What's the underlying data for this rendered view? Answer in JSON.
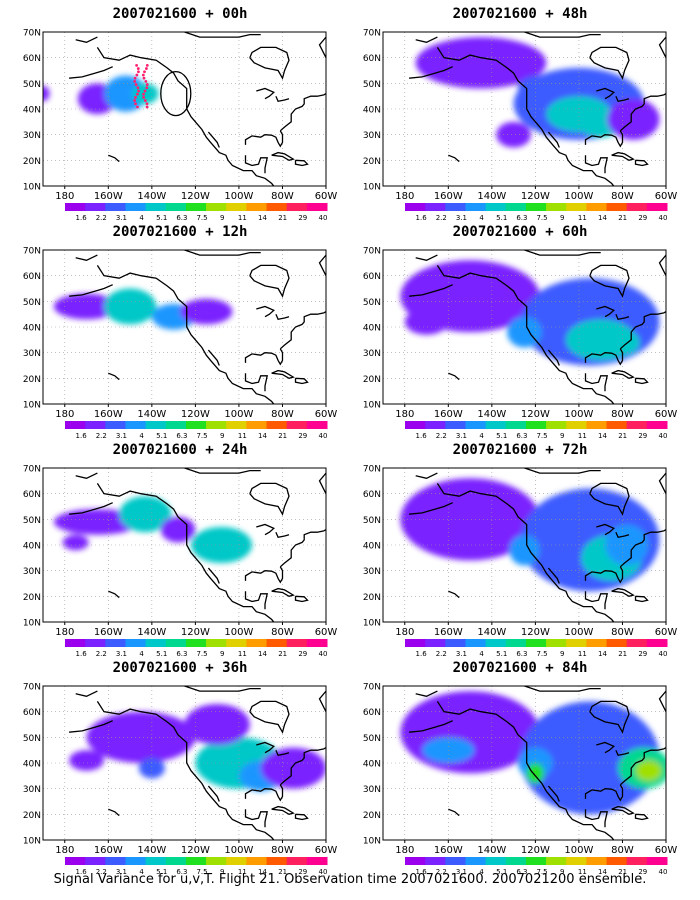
{
  "footer": "Signal Variance for u,v,T. Flight 21. Observation time 2007021600. 2007021200 ensemble.",
  "colorbar": {
    "labels": [
      "1.6",
      "2.2",
      "3.1",
      "4",
      "5.1",
      "6.3",
      "7.5",
      "9",
      "11",
      "14",
      "21",
      "29",
      "40"
    ],
    "colors": [
      "#9a00ee",
      "#7a22ff",
      "#3c5cff",
      "#1a96ff",
      "#00c8c8",
      "#00d890",
      "#20e020",
      "#a0e000",
      "#e0d000",
      "#ff9c00",
      "#ff5a00",
      "#ff2060",
      "#ff0090"
    ]
  },
  "map": {
    "xticks": [
      "180",
      "160W",
      "140W",
      "120W",
      "100W",
      "80W",
      "60W"
    ],
    "yticks": [
      "70N",
      "60N",
      "50N",
      "40N",
      "30N",
      "20N",
      "10N"
    ]
  },
  "chart_data": [
    {
      "type": "heatmap",
      "title": "2007021600 + 00h",
      "lead": "00h",
      "blobs": [
        [
          -165,
          44,
          9,
          6,
          1
        ],
        [
          -152,
          46,
          10,
          7,
          3
        ],
        [
          -143,
          46,
          6,
          4,
          4
        ],
        [
          -190,
          46,
          3,
          3,
          1
        ]
      ],
      "markers": {
        "circle": [
          -129,
          46
        ],
        "dots": true
      }
    },
    {
      "type": "heatmap",
      "title": "2007021600 + 12h",
      "lead": "12h",
      "blobs": [
        [
          -170,
          48,
          15,
          5,
          1
        ],
        [
          -150,
          48,
          12,
          7,
          4
        ],
        [
          -130,
          44,
          10,
          5,
          3
        ],
        [
          -115,
          46,
          12,
          5,
          1
        ]
      ]
    },
    {
      "type": "heatmap",
      "title": "2007021600 + 24h",
      "lead": "24h",
      "blobs": [
        [
          -165,
          49,
          20,
          5,
          1
        ],
        [
          -143,
          52,
          12,
          7,
          4
        ],
        [
          -108,
          40,
          14,
          7,
          4
        ],
        [
          -175,
          41,
          6,
          3,
          1
        ],
        [
          -128,
          46,
          8,
          5,
          1
        ]
      ]
    },
    {
      "type": "heatmap",
      "title": "2007021600 + 36h",
      "lead": "36h",
      "blobs": [
        [
          -145,
          50,
          25,
          10,
          1
        ],
        [
          -100,
          40,
          20,
          10,
          4
        ],
        [
          -90,
          35,
          10,
          6,
          3
        ],
        [
          -170,
          41,
          8,
          4,
          1
        ],
        [
          -140,
          38,
          6,
          4,
          2
        ],
        [
          -75,
          38,
          15,
          8,
          1
        ],
        [
          -110,
          55,
          15,
          8,
          1
        ]
      ]
    },
    {
      "type": "heatmap",
      "title": "2007021600 + 48h",
      "lead": "48h",
      "blobs": [
        [
          -145,
          58,
          30,
          10,
          1
        ],
        [
          -100,
          42,
          30,
          14,
          2
        ],
        [
          -100,
          38,
          15,
          7,
          4
        ],
        [
          -120,
          48,
          8,
          5,
          2
        ],
        [
          -90,
          34,
          10,
          5,
          4
        ],
        [
          -130,
          30,
          8,
          5,
          1
        ],
        [
          -75,
          36,
          12,
          8,
          1
        ]
      ]
    },
    {
      "type": "heatmap",
      "title": "2007021600 + 60h",
      "lead": "60h",
      "blobs": [
        [
          -150,
          52,
          32,
          14,
          1
        ],
        [
          -95,
          42,
          32,
          17,
          2
        ],
        [
          -90,
          35,
          16,
          8,
          4
        ],
        [
          -125,
          38,
          8,
          6,
          3
        ],
        [
          -80,
          34,
          8,
          5,
          4
        ],
        [
          -170,
          42,
          10,
          5,
          1
        ]
      ]
    },
    {
      "type": "heatmap",
      "title": "2007021600 + 72h",
      "lead": "72h",
      "blobs": [
        [
          -150,
          50,
          32,
          16,
          1
        ],
        [
          -95,
          42,
          32,
          20,
          2
        ],
        [
          -85,
          35,
          14,
          9,
          4
        ],
        [
          -125,
          38,
          7,
          6,
          3
        ],
        [
          -78,
          40,
          10,
          8,
          3
        ]
      ]
    },
    {
      "type": "heatmap",
      "title": "2007021600 + 84h",
      "lead": "84h",
      "blobs": [
        [
          -150,
          52,
          32,
          16,
          1
        ],
        [
          -95,
          42,
          32,
          22,
          2
        ],
        [
          -160,
          45,
          12,
          5,
          3
        ],
        [
          -120,
          40,
          8,
          6,
          3
        ],
        [
          -120,
          36,
          4,
          4,
          6
        ],
        [
          -70,
          38,
          12,
          8,
          5
        ],
        [
          -68,
          37,
          6,
          4,
          7
        ]
      ]
    }
  ]
}
